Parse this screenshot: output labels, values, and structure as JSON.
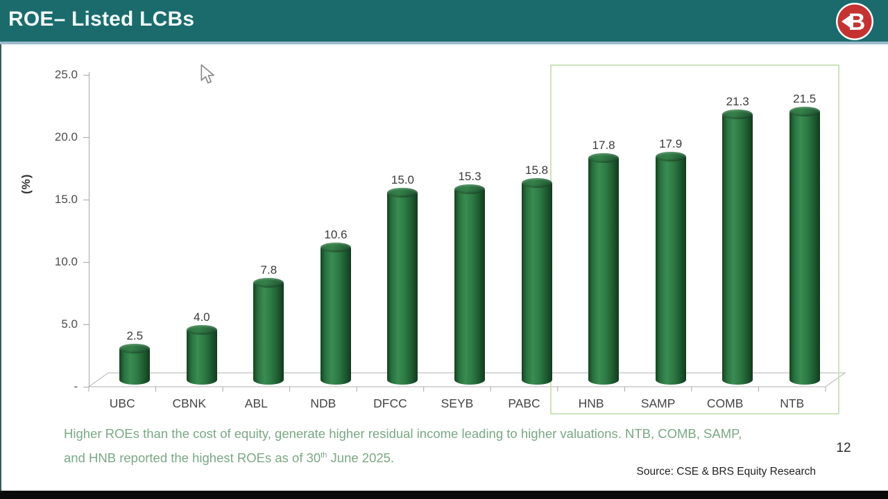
{
  "header": {
    "title": "ROE– Listed LCBs",
    "logo_letter": "B"
  },
  "chart_data": {
    "type": "bar",
    "subtype": "3d-cylinder",
    "title": "ROE– Listed LCBs",
    "categories": [
      "UBC",
      "CBNK",
      "ABL",
      "NDB",
      "DFCC",
      "SEYB",
      "PABC",
      "HNB",
      "SAMP",
      "COMB",
      "NTB"
    ],
    "values": [
      2.5,
      4.0,
      7.8,
      10.6,
      15.0,
      15.3,
      15.8,
      17.8,
      17.9,
      21.3,
      21.5
    ],
    "value_labels": [
      "2.5",
      "4.0",
      "7.8",
      "10.6",
      "15.0",
      "15.3",
      "15.8",
      "17.8",
      "17.9",
      "21.3",
      "21.5"
    ],
    "xlabel": "",
    "ylabel": "(%)",
    "ylim": [
      0,
      25
    ],
    "ytick_labels": [
      "25.0",
      "20.0",
      "15.0",
      "10.0",
      "5.0",
      "-"
    ],
    "ytick_values": [
      25,
      20,
      15,
      10,
      5,
      0
    ],
    "grid": false,
    "legend": "none",
    "bar_color": "#2e7d46",
    "highlight_group": {
      "categories": [
        "HNB",
        "SAMP",
        "COMB",
        "NTB"
      ],
      "border_color": "#cbe3ba"
    }
  },
  "note": {
    "line1": "Higher ROEs than the cost of equity, generate higher residual income leading to higher valuations. NTB, COMB, SAMP,",
    "line2_pre": "and HNB reported the highest ROEs as of 30",
    "line2_sup": "th",
    "line2_post": " June 2025.",
    "color": "#7aa884"
  },
  "source": "Source: CSE & BRS Equity Research",
  "page_number": "12",
  "colors": {
    "header_bg": "#1b6b6d",
    "header_title": "#f2fbfa",
    "header_divider": "#9dbccb",
    "logo_red": "#c43332",
    "axis_line": "#a6a6a6",
    "tick_text": "#4d4d4d",
    "bar_label_text": "#3a3a3a"
  }
}
